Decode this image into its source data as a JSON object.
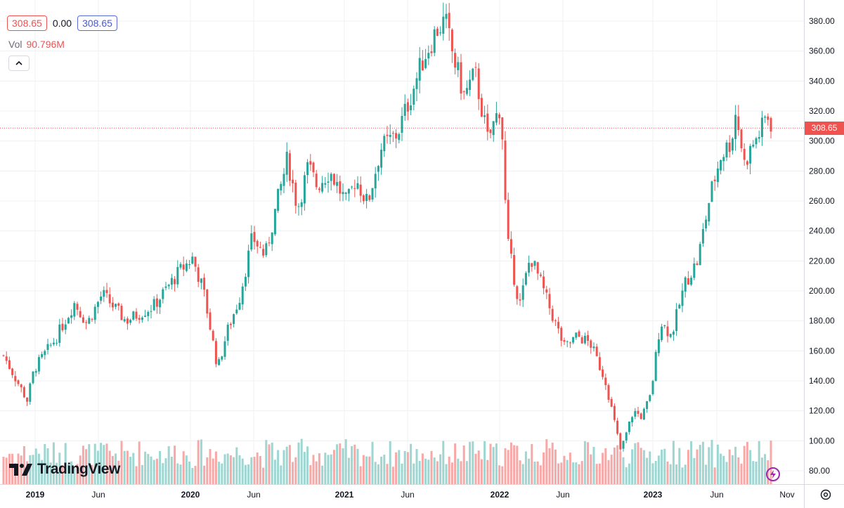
{
  "legend": {
    "open": "308.65",
    "change": "0.00",
    "close": "308.65",
    "vol_label": "Vol",
    "vol_value": "90.796M"
  },
  "logo_text": "TradingView",
  "last_price_label": "308.65",
  "colors": {
    "up": "#26a69a",
    "down": "#ef5350",
    "up_vol": "#9ed6d1",
    "down_vol": "#f7a9a7",
    "grid": "#eef0f3"
  },
  "chart_data": {
    "type": "candlestick",
    "y_ticks": [
      "380.00",
      "360.00",
      "340.00",
      "320.00",
      "300.00",
      "280.00",
      "260.00",
      "240.00",
      "220.00",
      "200.00",
      "180.00",
      "160.00",
      "140.00",
      "120.00",
      "100.00",
      "80.00"
    ],
    "x_ticks": [
      "2019",
      "Jun",
      "2020",
      "Jun",
      "2021",
      "Jun",
      "2022",
      "Jun",
      "2023",
      "Jun",
      "Nov"
    ],
    "ylim": [
      76,
      386
    ],
    "last_price": 308.65,
    "path": [
      [
        "2018-10-29",
        157
      ],
      [
        "2018-12-24",
        127
      ],
      [
        "2019-01-10",
        148
      ],
      [
        "2019-03-01",
        168
      ],
      [
        "2019-04-15",
        192
      ],
      [
        "2019-05-15",
        178
      ],
      [
        "2019-06-20",
        198
      ],
      [
        "2019-08-15",
        180
      ],
      [
        "2019-10-20",
        190
      ],
      [
        "2019-12-20",
        213
      ],
      [
        "2020-01-20",
        222
      ],
      [
        "2020-02-15",
        200
      ],
      [
        "2020-03-20",
        148
      ],
      [
        "2020-04-10",
        172
      ],
      [
        "2020-05-10",
        195
      ],
      [
        "2020-06-10",
        236
      ],
      [
        "2020-07-10",
        223
      ],
      [
        "2020-08-10",
        262
      ],
      [
        "2020-09-01",
        288
      ],
      [
        "2020-09-25",
        255
      ],
      [
        "2020-10-20",
        283
      ],
      [
        "2020-11-10",
        270
      ],
      [
        "2020-12-10",
        280
      ],
      [
        "2021-01-20",
        258
      ],
      [
        "2021-02-10",
        275
      ],
      [
        "2021-03-10",
        258
      ],
      [
        "2021-04-10",
        295
      ],
      [
        "2021-05-20",
        305
      ],
      [
        "2021-06-20",
        330
      ],
      [
        "2021-07-20",
        355
      ],
      [
        "2021-08-20",
        374
      ],
      [
        "2021-09-10",
        380
      ],
      [
        "2021-09-30",
        355
      ],
      [
        "2021-10-25",
        330
      ],
      [
        "2021-11-20",
        345
      ],
      [
        "2021-12-20",
        300
      ],
      [
        "2022-01-20",
        325
      ],
      [
        "2022-02-03",
        235
      ],
      [
        "2022-03-05",
        190
      ],
      [
        "2022-03-31",
        223
      ],
      [
        "2022-04-25",
        205
      ],
      [
        "2022-05-20",
        185
      ],
      [
        "2022-06-20",
        162
      ],
      [
        "2022-07-20",
        170
      ],
      [
        "2022-08-20",
        165
      ],
      [
        "2022-09-25",
        140
      ],
      [
        "2022-10-31",
        93
      ],
      [
        "2022-11-30",
        120
      ],
      [
        "2022-12-20",
        116
      ],
      [
        "2023-01-10",
        130
      ],
      [
        "2023-02-02",
        180
      ],
      [
        "2023-02-28",
        170
      ],
      [
        "2023-04-01",
        205
      ],
      [
        "2023-05-01",
        220
      ],
      [
        "2023-06-01",
        265
      ],
      [
        "2023-06-25",
        290
      ],
      [
        "2023-07-20",
        300
      ],
      [
        "2023-07-31",
        320
      ],
      [
        "2023-08-20",
        285
      ],
      [
        "2023-09-10",
        298
      ],
      [
        "2023-09-30",
        308
      ],
      [
        "2023-10-12",
        318
      ],
      [
        "2023-10-27",
        308.65
      ]
    ]
  }
}
